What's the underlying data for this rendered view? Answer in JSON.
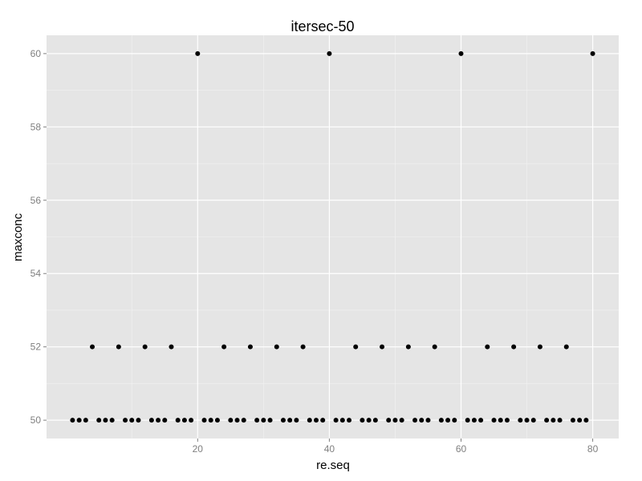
{
  "chart_data": {
    "type": "scatter",
    "title": "itersec-50",
    "xlabel": "re.seq",
    "ylabel": "maxconc",
    "xlim": [
      -2.95,
      83.95
    ],
    "ylim": [
      49.5,
      60.5
    ],
    "x_ticks": [
      20,
      40,
      60,
      80
    ],
    "y_ticks": [
      50,
      52,
      54,
      56,
      58,
      60
    ],
    "grid": true,
    "panel_color": "#e5e5e5",
    "grid_color": "#ffffff",
    "point_color": "#000000",
    "series": [
      {
        "x": [
          1,
          2,
          3,
          4,
          5,
          6,
          7,
          8,
          9,
          10,
          11,
          12,
          13,
          14,
          15,
          16,
          17,
          18,
          19,
          20,
          21,
          22,
          23,
          24,
          25,
          26,
          27,
          28,
          29,
          30,
          31,
          32,
          33,
          34,
          35,
          36,
          37,
          38,
          39,
          40,
          41,
          42,
          43,
          44,
          45,
          46,
          47,
          48,
          49,
          50,
          51,
          52,
          53,
          54,
          55,
          56,
          57,
          58,
          59,
          60,
          61,
          62,
          63,
          64,
          65,
          66,
          67,
          68,
          69,
          70,
          71,
          72,
          73,
          74,
          75,
          76,
          77,
          78,
          79,
          80
        ],
        "y": [
          50,
          50,
          50,
          52,
          50,
          50,
          50,
          52,
          50,
          50,
          50,
          52,
          50,
          50,
          50,
          52,
          50,
          50,
          50,
          60,
          50,
          50,
          50,
          52,
          50,
          50,
          50,
          52,
          50,
          50,
          50,
          52,
          50,
          50,
          50,
          52,
          50,
          50,
          50,
          60,
          50,
          50,
          50,
          52,
          50,
          50,
          50,
          52,
          50,
          50,
          50,
          52,
          50,
          50,
          50,
          52,
          50,
          50,
          50,
          60,
          50,
          50,
          50,
          52,
          50,
          50,
          50,
          52,
          50,
          50,
          50,
          52,
          50,
          50,
          50,
          52,
          50,
          50,
          50,
          60
        ]
      }
    ]
  }
}
